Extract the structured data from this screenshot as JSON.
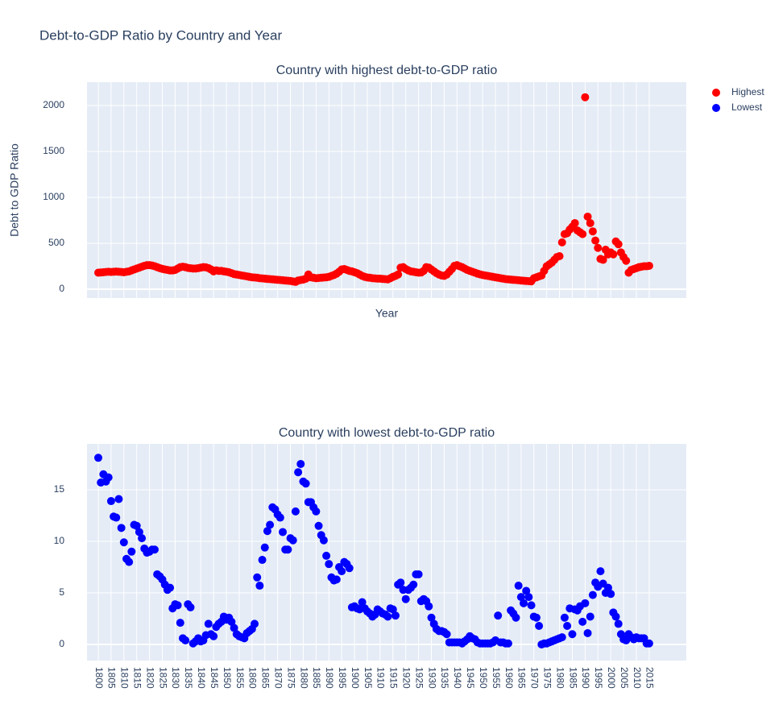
{
  "title": "Debt-to-GDP Ratio by Country and Year",
  "chart_data": [
    {
      "type": "scatter",
      "title": "Country with highest debt-to-GDP ratio",
      "xlabel": "Year",
      "ylabel": "Debt to GDP Ratio",
      "x": [
        1800,
        1801,
        1802,
        1803,
        1804,
        1805,
        1806,
        1807,
        1808,
        1809,
        1810,
        1811,
        1812,
        1813,
        1814,
        1815,
        1816,
        1817,
        1818,
        1819,
        1820,
        1821,
        1822,
        1823,
        1824,
        1825,
        1826,
        1827,
        1828,
        1829,
        1830,
        1831,
        1832,
        1833,
        1834,
        1835,
        1836,
        1837,
        1838,
        1839,
        1840,
        1841,
        1842,
        1843,
        1844,
        1845,
        1846,
        1847,
        1848,
        1849,
        1850,
        1851,
        1852,
        1853,
        1854,
        1855,
        1856,
        1857,
        1858,
        1859,
        1860,
        1861,
        1862,
        1863,
        1864,
        1865,
        1866,
        1867,
        1868,
        1869,
        1870,
        1871,
        1872,
        1873,
        1874,
        1875,
        1876,
        1877,
        1878,
        1879,
        1880,
        1881,
        1882,
        1883,
        1884,
        1885,
        1886,
        1887,
        1888,
        1889,
        1890,
        1891,
        1892,
        1893,
        1894,
        1895,
        1896,
        1897,
        1898,
        1899,
        1900,
        1901,
        1902,
        1903,
        1904,
        1905,
        1906,
        1907,
        1908,
        1909,
        1910,
        1911,
        1912,
        1913,
        1914,
        1915,
        1916,
        1917,
        1918,
        1919,
        1920,
        1921,
        1922,
        1923,
        1924,
        1925,
        1926,
        1927,
        1928,
        1929,
        1930,
        1931,
        1932,
        1933,
        1934,
        1935,
        1936,
        1937,
        1938,
        1939,
        1940,
        1941,
        1942,
        1943,
        1944,
        1945,
        1946,
        1947,
        1948,
        1949,
        1950,
        1951,
        1952,
        1953,
        1954,
        1955,
        1956,
        1957,
        1958,
        1959,
        1960,
        1961,
        1962,
        1963,
        1964,
        1965,
        1966,
        1967,
        1968,
        1969,
        1970,
        1971,
        1972,
        1973,
        1974,
        1975,
        1976,
        1977,
        1978,
        1979,
        1980,
        1981,
        1982,
        1983,
        1984,
        1985,
        1986,
        1987,
        1988,
        1989,
        1990,
        1991,
        1992,
        1993,
        1994,
        1995,
        1996,
        1997,
        1998,
        1999,
        2000,
        2001,
        2002,
        2003,
        2004,
        2005,
        2006,
        2007,
        2008,
        2009,
        2010,
        2011,
        2012,
        2013,
        2014,
        2015
      ],
      "series": [
        {
          "name": "Highest",
          "color": "#ff0000",
          "values": [
            180,
            182,
            185,
            188,
            190,
            188,
            190,
            192,
            190,
            188,
            185,
            190,
            195,
            205,
            215,
            225,
            235,
            245,
            255,
            262,
            262,
            258,
            250,
            240,
            230,
            222,
            215,
            210,
            205,
            205,
            210,
            225,
            240,
            245,
            240,
            232,
            228,
            225,
            225,
            230,
            235,
            240,
            238,
            230,
            215,
            195,
            205,
            200,
            200,
            195,
            190,
            185,
            175,
            165,
            160,
            155,
            150,
            145,
            140,
            135,
            130,
            128,
            125,
            120,
            118,
            115,
            112,
            110,
            108,
            105,
            102,
            100,
            98,
            95,
            92,
            90,
            85,
            80,
            95,
            100,
            105,
            115,
            160,
            130,
            125,
            120,
            122,
            125,
            128,
            130,
            135,
            145,
            155,
            170,
            190,
            215,
            220,
            210,
            200,
            195,
            185,
            175,
            160,
            145,
            135,
            128,
            125,
            120,
            118,
            115,
            115,
            112,
            110,
            108,
            120,
            135,
            145,
            160,
            235,
            240,
            220,
            205,
            195,
            190,
            185,
            180,
            182,
            200,
            240,
            235,
            215,
            195,
            175,
            160,
            150,
            145,
            160,
            190,
            220,
            255,
            262,
            250,
            240,
            225,
            210,
            200,
            190,
            180,
            170,
            162,
            155,
            150,
            145,
            140,
            135,
            130,
            125,
            120,
            115,
            110,
            108,
            105,
            102,
            100,
            98,
            95,
            92,
            90,
            88,
            86,
            120,
            130,
            140,
            150,
            200,
            250,
            270,
            290,
            320,
            350,
            360,
            510,
            600,
            610,
            650,
            680,
            720,
            640,
            620,
            600,
            2090,
            790,
            720,
            630,
            530,
            450,
            330,
            320,
            430,
            380,
            400,
            380,
            520,
            490,
            400,
            350,
            310,
            180,
            210,
            220,
            230,
            240,
            245,
            250,
            250,
            255
          ]
        }
      ],
      "xlim": [
        1795.6,
        2029.5
      ],
      "ylim": [
        -96,
        2254
      ],
      "xticks": [
        1800,
        1805,
        1810,
        1815,
        1820,
        1825,
        1830,
        1835,
        1840,
        1845,
        1850,
        1855,
        1860,
        1865,
        1870,
        1875,
        1880,
        1885,
        1890,
        1895,
        1900,
        1905,
        1910,
        1915,
        1920,
        1925,
        1930,
        1935,
        1940,
        1945,
        1950,
        1955,
        1960,
        1965,
        1970,
        1975,
        1980,
        1985,
        1990,
        1995,
        2000,
        2005,
        2010,
        2015
      ],
      "xticklabels": false,
      "yticks": [
        0,
        500,
        1000,
        1500,
        2000
      ],
      "grid": true
    },
    {
      "type": "scatter",
      "title": "Country with lowest debt-to-GDP ratio",
      "x": [
        1800,
        1801,
        1802,
        1803,
        1804,
        1805,
        1806,
        1807,
        1808,
        1809,
        1810,
        1811,
        1812,
        1813,
        1814,
        1815,
        1816,
        1817,
        1818,
        1819,
        1820,
        1821,
        1822,
        1823,
        1824,
        1825,
        1826,
        1827,
        1828,
        1829,
        1830,
        1831,
        1832,
        1833,
        1834,
        1835,
        1836,
        1837,
        1838,
        1839,
        1840,
        1841,
        1842,
        1843,
        1844,
        1845,
        1846,
        1847,
        1848,
        1849,
        1850,
        1851,
        1852,
        1853,
        1854,
        1855,
        1856,
        1857,
        1858,
        1859,
        1860,
        1861,
        1862,
        1863,
        1864,
        1865,
        1866,
        1867,
        1868,
        1869,
        1870,
        1871,
        1872,
        1873,
        1874,
        1875,
        1876,
        1877,
        1878,
        1879,
        1880,
        1881,
        1882,
        1883,
        1884,
        1885,
        1886,
        1887,
        1888,
        1889,
        1890,
        1891,
        1892,
        1893,
        1894,
        1895,
        1896,
        1897,
        1898,
        1899,
        1900,
        1901,
        1902,
        1903,
        1904,
        1905,
        1906,
        1907,
        1908,
        1909,
        1910,
        1911,
        1912,
        1913,
        1914,
        1915,
        1916,
        1917,
        1918,
        1919,
        1920,
        1921,
        1922,
        1923,
        1924,
        1925,
        1926,
        1927,
        1928,
        1929,
        1930,
        1931,
        1932,
        1933,
        1934,
        1935,
        1936,
        1937,
        1938,
        1939,
        1940,
        1941,
        1942,
        1943,
        1944,
        1945,
        1946,
        1947,
        1948,
        1949,
        1950,
        1951,
        1952,
        1953,
        1954,
        1955,
        1956,
        1957,
        1958,
        1959,
        1960,
        1961,
        1962,
        1963,
        1964,
        1965,
        1966,
        1967,
        1968,
        1969,
        1970,
        1971,
        1972,
        1973,
        1974,
        1975,
        1976,
        1977,
        1978,
        1979,
        1980,
        1981,
        1982,
        1983,
        1984,
        1985,
        1986,
        1987,
        1988,
        1989,
        1990,
        1991,
        1992,
        1993,
        1994,
        1995,
        1996,
        1997,
        1998,
        1999,
        2000,
        2001,
        2002,
        2003,
        2004,
        2005,
        2006,
        2007,
        2008,
        2009,
        2010,
        2011,
        2012,
        2013,
        2014,
        2015
      ],
      "series": [
        {
          "name": "Lowest",
          "color": "#0000ff",
          "values": [
            18.1,
            15.7,
            16.5,
            15.8,
            16.2,
            13.9,
            12.4,
            12.3,
            14.1,
            11.3,
            9.9,
            8.3,
            8.0,
            9.0,
            11.6,
            11.5,
            10.9,
            10.3,
            9.3,
            8.9,
            9.0,
            9.2,
            9.2,
            6.8,
            6.6,
            6.3,
            5.8,
            5.3,
            5.5,
            3.5,
            3.9,
            3.8,
            2.1,
            0.6,
            0.4,
            3.9,
            3.6,
            0.1,
            0.3,
            0.6,
            0.3,
            0.4,
            0.9,
            2.0,
            1.0,
            0.8,
            1.7,
            2.0,
            2.2,
            2.7,
            2.4,
            2.6,
            2.2,
            1.6,
            1.0,
            0.8,
            0.7,
            0.6,
            1.1,
            1.3,
            1.5,
            2.0,
            6.5,
            5.7,
            8.2,
            9.4,
            11.0,
            11.6,
            13.3,
            13.1,
            12.6,
            12.3,
            10.9,
            9.2,
            9.2,
            10.3,
            10.1,
            12.9,
            16.7,
            17.5,
            15.8,
            15.6,
            13.8,
            13.8,
            13.3,
            12.9,
            11.5,
            10.6,
            10.1,
            8.6,
            7.8,
            6.5,
            6.2,
            6.3,
            7.5,
            7.1,
            8.0,
            7.8,
            7.4,
            3.6,
            3.7,
            3.5,
            3.4,
            4.1,
            3.5,
            3.2,
            3.0,
            2.7,
            2.9,
            3.4,
            3.2,
            3.0,
            2.9,
            2.7,
            3.5,
            3.4,
            2.8,
            5.8,
            6.0,
            5.3,
            4.4,
            5.3,
            5.5,
            5.8,
            6.8,
            6.8,
            4.2,
            4.4,
            4.2,
            3.7,
            2.6,
            2.0,
            1.5,
            1.3,
            1.3,
            1.2,
            1.0,
            0.2,
            0.2,
            0.2,
            0.2,
            0.2,
            0.1,
            0.3,
            0.5,
            0.8,
            0.6,
            0.5,
            0.2,
            0.1,
            0.1,
            0.1,
            0.1,
            0.1,
            0.2,
            0.4,
            2.8,
            0.2,
            0.2,
            0.1,
            0.1,
            3.3,
            3.0,
            2.6,
            5.7,
            4.6,
            4.0,
            5.2,
            4.6,
            3.8,
            2.7,
            2.6,
            1.8,
            0,
            0.1,
            0.1,
            0.2,
            0.3,
            0.4,
            0.5,
            0.6,
            0.7,
            2.6,
            1.8,
            3.5,
            1.0,
            3.4,
            3.3,
            3.7,
            2.2,
            4.0,
            1.1,
            2.7,
            4.8,
            6.0,
            5.6,
            7.1,
            5.9,
            5.0,
            5.5,
            4.9,
            3.1,
            2.7,
            2.0,
            1.0,
            0.5,
            0.4,
            1.0,
            0.7,
            0.5,
            0.7,
            0.6,
            0.6,
            0.6,
            0.1,
            0.1
          ]
        }
      ],
      "xlim": [
        1795.6,
        2029.5
      ],
      "ylim": [
        -1.56,
        19.45
      ],
      "xticks": [
        1800,
        1805,
        1810,
        1815,
        1820,
        1825,
        1830,
        1835,
        1840,
        1845,
        1850,
        1855,
        1860,
        1865,
        1870,
        1875,
        1880,
        1885,
        1890,
        1895,
        1900,
        1905,
        1910,
        1915,
        1920,
        1925,
        1930,
        1935,
        1940,
        1945,
        1950,
        1955,
        1960,
        1965,
        1970,
        1975,
        1980,
        1985,
        1990,
        1995,
        2000,
        2005,
        2010,
        2015
      ],
      "xticklabels": true,
      "yticks": [
        0,
        5,
        10,
        15
      ],
      "grid": true
    }
  ]
}
